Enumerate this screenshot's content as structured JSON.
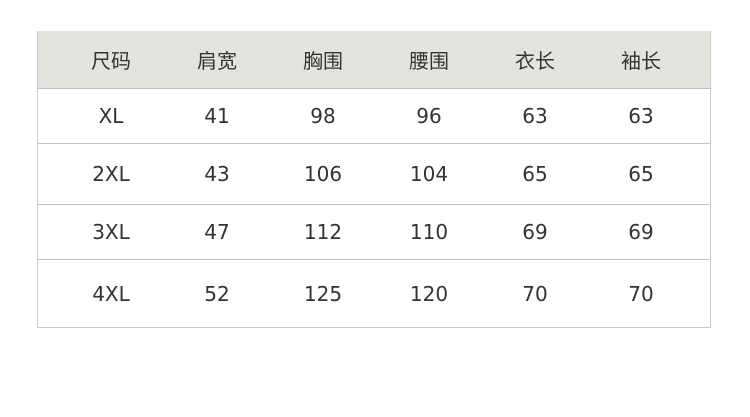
{
  "table": {
    "headers": [
      "尺码",
      "肩宽",
      "胸围",
      "腰围",
      "衣长",
      "袖长"
    ],
    "rows": [
      [
        "XL",
        "41",
        "98",
        "96",
        "63",
        "63"
      ],
      [
        "2XL",
        "43",
        "106",
        "104",
        "65",
        "65"
      ],
      [
        "3XL",
        "47",
        "112",
        "110",
        "69",
        "69"
      ],
      [
        "4XL",
        "52",
        "125",
        "120",
        "70",
        "70"
      ]
    ]
  }
}
